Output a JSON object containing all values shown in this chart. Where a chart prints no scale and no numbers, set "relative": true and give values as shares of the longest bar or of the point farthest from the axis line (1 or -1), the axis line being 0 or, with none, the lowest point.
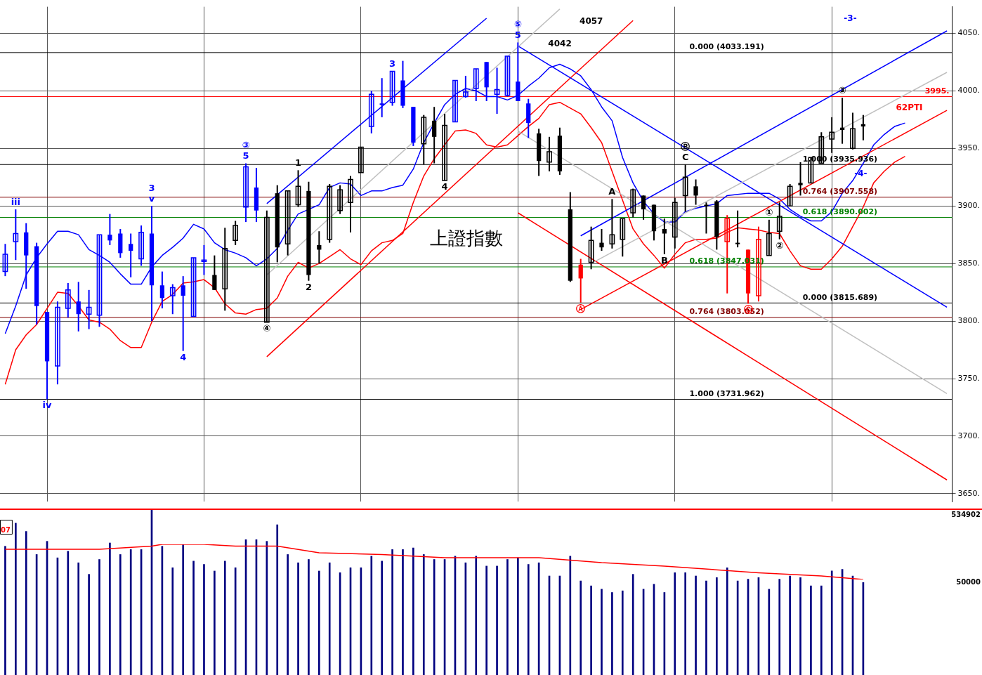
{
  "chart_data": [
    {
      "type": "candlestick",
      "title": "上證指數",
      "categories": [
        null,
        null,
        null,
        null,
        null,
        null,
        null,
        null,
        null,
        null,
        null,
        null,
        null,
        null,
        null,
        null,
        null,
        null,
        null,
        null,
        null,
        null,
        null,
        null,
        null,
        null,
        null,
        null,
        null,
        null,
        null,
        null,
        null,
        null,
        null,
        null,
        null,
        null,
        null,
        null,
        null,
        null,
        null,
        null,
        null,
        null,
        null,
        null,
        null,
        null,
        null,
        null,
        null,
        null,
        null,
        null,
        null,
        null,
        null,
        null,
        null,
        null,
        null,
        null,
        null,
        null,
        null,
        null,
        null,
        null,
        null,
        null,
        null,
        null,
        null,
        null,
        null,
        null,
        null,
        null,
        null,
        null,
        null,
        null,
        null,
        null,
        null,
        null,
        null,
        null,
        null
      ],
      "ohlc": [
        [
          3843,
          3867,
          3839,
          3858
        ],
        [
          3869,
          3897,
          3853,
          3876
        ],
        [
          3877,
          3885,
          3828,
          3857
        ],
        [
          3865,
          3868,
          3797,
          3813
        ],
        [
          3808,
          3808,
          3732,
          3765
        ],
        [
          3761,
          3817,
          3745,
          3812
        ],
        [
          3811,
          3833,
          3803,
          3827
        ],
        [
          3817,
          3834,
          3791,
          3806
        ],
        [
          3806,
          3827,
          3793,
          3812
        ],
        [
          3805,
          3875,
          3795,
          3875
        ],
        [
          3875,
          3893,
          3866,
          3870
        ],
        [
          3876,
          3880,
          3855,
          3859
        ],
        [
          3867,
          3876,
          3838,
          3861
        ],
        [
          3854,
          3883,
          3848,
          3877
        ],
        [
          3876,
          3900,
          3800,
          3831
        ],
        [
          3831,
          3843,
          3811,
          3820
        ],
        [
          3822,
          3832,
          3806,
          3829
        ],
        [
          3831,
          3839,
          3774,
          3822
        ],
        [
          3804,
          3855,
          3804,
          3855
        ],
        [
          3852,
          3866,
          3840,
          3853
        ],
        [
          3840,
          3857,
          3827,
          3827
        ],
        [
          3828,
          3881,
          3809,
          3863
        ],
        [
          3870,
          3887,
          3866,
          3883
        ],
        [
          3899,
          3937,
          3886,
          3934
        ],
        [
          3916,
          3933,
          3886,
          3896
        ],
        [
          3799,
          3896,
          3799,
          3890
        ],
        [
          3911,
          3918,
          3851,
          3864
        ],
        [
          3867,
          3913,
          3857,
          3913
        ],
        [
          3901,
          3931,
          3899,
          3917
        ],
        [
          3913,
          3921,
          3835,
          3840
        ],
        [
          3866,
          3878,
          3850,
          3862
        ],
        [
          3871,
          3919,
          3868,
          3917
        ],
        [
          3896,
          3918,
          3893,
          3914
        ],
        [
          3903,
          3926,
          3877,
          3923
        ],
        [
          3929,
          3951,
          3929,
          3951
        ],
        [
          3969,
          4000,
          3963,
          3997
        ],
        [
          3989,
          4011,
          3977,
          3988
        ],
        [
          3990,
          4017,
          3987,
          4017
        ],
        [
          4009,
          4026,
          3985,
          3987
        ],
        [
          3986,
          3986,
          3952,
          3955
        ],
        [
          3954,
          3979,
          3936,
          3977
        ],
        [
          3974,
          3986,
          3937,
          3960
        ],
        [
          3922,
          3980,
          3922,
          3970
        ],
        [
          3973,
          4009,
          3973,
          4009
        ],
        [
          3995,
          4013,
          3994,
          3999
        ],
        [
          4002,
          4019,
          3991,
          4019
        ],
        [
          4025,
          4025,
          3991,
          4003
        ],
        [
          3997,
          4020,
          3980,
          4001
        ],
        [
          3996,
          4030,
          3995,
          4030
        ],
        [
          4008,
          4042,
          3991,
          3991
        ],
        [
          3989,
          3993,
          3959,
          3972
        ],
        [
          3963,
          3967,
          3926,
          3939
        ],
        [
          3938,
          3960,
          3930,
          3947
        ],
        [
          3961,
          3968,
          3927,
          3930
        ],
        [
          3897,
          3912,
          3834,
          3835
        ],
        [
          3849,
          3854,
          3816,
          3837
        ],
        [
          3851,
          3882,
          3845,
          3870
        ],
        [
          3868,
          3880,
          3861,
          3864
        ],
        [
          3867,
          3906,
          3863,
          3875
        ],
        [
          3871,
          3889,
          3856,
          3889
        ],
        [
          3894,
          3915,
          3890,
          3914
        ],
        [
          3909,
          3909,
          3888,
          3897
        ],
        [
          3901,
          3901,
          3870,
          3878
        ],
        [
          3880,
          3889,
          3858,
          3876
        ],
        [
          3873,
          3907,
          3863,
          3903
        ],
        [
          3909,
          3936,
          3895,
          3925
        ],
        [
          3917,
          3923,
          3901,
          3909
        ],
        [
          3901,
          3903,
          3876,
          3900
        ],
        [
          3904,
          3905,
          3862,
          3873
        ],
        [
          3869,
          3892,
          3824,
          3889
        ],
        [
          3868,
          3896,
          3864,
          3867
        ],
        [
          3862,
          3862,
          3815,
          3824
        ],
        [
          3822,
          3882,
          3817,
          3871
        ],
        [
          3857,
          3888,
          3857,
          3876
        ],
        [
          3878,
          3903,
          3871,
          3891
        ],
        [
          3900,
          3919,
          3900,
          3917
        ],
        [
          3920,
          3938,
          3909,
          3918
        ],
        [
          3920,
          3942,
          3920,
          3942
        ],
        [
          3937,
          3964,
          3937,
          3960
        ],
        [
          3958,
          3977,
          3946,
          3964
        ],
        [
          3968,
          3994,
          3954,
          3966
        ],
        [
          3950,
          3981,
          3949,
          3967
        ],
        [
          3971,
          3979,
          3957,
          3969
        ],
        null,
        null,
        null,
        null,
        null,
        null,
        null,
        null
      ],
      "colors": [
        "#0000ff",
        "#0000ff",
        "#0000ff",
        "#0000ff",
        "#0000ff",
        "#0000ff",
        "#0000ff",
        "#0000ff",
        "#0000ff",
        "#0000ff",
        "#0000ff",
        "#0000ff",
        "#0000ff",
        "#0000ff",
        "#0000ff",
        "#0000ff",
        "#0000ff",
        "#0000ff",
        "#0000ff",
        "#0000ff",
        "#000000",
        "#000000",
        "#000000",
        "#0000ff",
        "#0000ff",
        "#000000",
        "#000000",
        "#000000",
        "#000000",
        "#000000",
        "#000000",
        "#000000",
        "#000000",
        "#000000",
        "#000000",
        "#0000ff",
        "#0000ff",
        "#0000ff",
        "#0000ff",
        "#0000ff",
        "#000000",
        "#000000",
        "#000000",
        "#0000ff",
        "#0000ff",
        "#0000ff",
        "#0000ff",
        "#0000ff",
        "#0000ff",
        "#0000ff",
        "#0000ff",
        "#000000",
        "#000000",
        "#000000",
        "#000000",
        "#ff0000",
        "#000000",
        "#000000",
        "#000000",
        "#000000",
        "#000000",
        "#000000",
        "#000000",
        "#000000",
        "#000000",
        "#000000",
        "#000000",
        "#000000",
        "#000000",
        "#ff0000",
        "#000000",
        "#ff0000",
        "#ff0000",
        "#000000",
        "#000000",
        "#000000",
        "#000000",
        "#000000",
        "#000000",
        "#000000",
        "#000000",
        "#000000",
        "#000000",
        null,
        null,
        null,
        null,
        null,
        null,
        null,
        null
      ],
      "series": [
        {
          "type": "line",
          "color": "#c0c0c0",
          "values": [
            null,
            null,
            null,
            null,
            null,
            null,
            null,
            null,
            null,
            null,
            null,
            null,
            null,
            null,
            null,
            null,
            null,
            null,
            null,
            null,
            null,
            null,
            null,
            null,
            null,
            3840,
            null,
            null,
            null,
            null,
            null,
            null,
            null,
            null,
            null,
            null,
            null,
            null,
            null,
            null,
            null,
            null,
            null,
            null,
            null,
            null,
            null,
            null,
            null,
            null,
            null,
            null,
            null,
            4071,
            null,
            null,
            null,
            null,
            null,
            null,
            null,
            null,
            null,
            null,
            null,
            null,
            null,
            null,
            null,
            null,
            null,
            null,
            null,
            null,
            null,
            null,
            null,
            null,
            null,
            null,
            null,
            null,
            null,
            null,
            null,
            null,
            null,
            null,
            null,
            null,
            null
          ]
        },
        {
          "type": "line",
          "color": "#c0c0c0",
          "values": [
            null,
            null,
            null,
            null,
            null,
            null,
            null,
            null,
            null,
            null,
            null,
            null,
            null,
            null,
            null,
            null,
            null,
            null,
            null,
            null,
            null,
            null,
            null,
            null,
            null,
            null,
            null,
            null,
            null,
            null,
            null,
            null,
            null,
            null,
            null,
            null,
            null,
            null,
            null,
            null,
            null,
            null,
            null,
            null,
            null,
            null,
            null,
            null,
            null,
            null,
            null,
            null,
            null,
            null,
            null,
            null,
            3850,
            null,
            null,
            null,
            null,
            null,
            null,
            null,
            null,
            null,
            null,
            null,
            null,
            null,
            null,
            null,
            null,
            null,
            null,
            null,
            null,
            null,
            null,
            null,
            null,
            null,
            null,
            null,
            null,
            null,
            null,
            null,
            null,
            null,
            4016
          ]
        },
        {
          "type": "line",
          "color": "#c0c0c0",
          "values": [
            null,
            null,
            null,
            null,
            null,
            null,
            null,
            null,
            null,
            null,
            null,
            null,
            null,
            null,
            null,
            null,
            null,
            null,
            null,
            null,
            null,
            null,
            null,
            null,
            null,
            null,
            null,
            null,
            null,
            null,
            null,
            null,
            null,
            null,
            null,
            null,
            null,
            null,
            null,
            null,
            null,
            null,
            null,
            null,
            null,
            null,
            null,
            null,
            null,
            3965,
            null,
            null,
            null,
            null,
            null,
            null,
            null,
            null,
            null,
            null,
            null,
            null,
            null,
            null,
            null,
            null,
            null,
            null,
            null,
            null,
            null,
            null,
            null,
            null,
            null,
            null,
            null,
            null,
            null,
            null,
            null,
            null,
            null,
            null,
            null,
            null,
            null,
            null,
            null,
            null,
            3737
          ]
        },
        {
          "type": "line",
          "color": "#0000ff",
          "values": [
            null,
            null,
            null,
            null,
            null,
            null,
            null,
            null,
            null,
            null,
            null,
            null,
            null,
            null,
            null,
            null,
            null,
            null,
            null,
            null,
            null,
            null,
            null,
            null,
            null,
            3902,
            null,
            null,
            null,
            null,
            null,
            null,
            null,
            null,
            null,
            null,
            null,
            null,
            null,
            null,
            null,
            null,
            null,
            null,
            null,
            null,
            4063,
            null,
            null,
            null,
            null,
            null,
            null,
            null,
            null,
            null,
            null,
            null,
            null,
            null,
            null,
            null,
            null,
            null,
            null,
            null,
            null,
            null,
            null,
            null,
            null,
            null,
            null,
            null,
            null,
            null,
            null,
            null,
            null,
            null,
            null,
            null,
            null,
            null,
            null,
            null,
            null,
            null,
            null,
            null,
            null
          ]
        },
        {
          "type": "line",
          "color": "#0000ff",
          "values": [
            null,
            null,
            null,
            null,
            null,
            null,
            null,
            null,
            null,
            null,
            null,
            null,
            null,
            null,
            null,
            null,
            null,
            null,
            null,
            null,
            null,
            null,
            null,
            null,
            null,
            null,
            null,
            null,
            null,
            null,
            null,
            null,
            null,
            null,
            null,
            null,
            null,
            null,
            null,
            null,
            null,
            null,
            null,
            null,
            null,
            null,
            null,
            null,
            null,
            null,
            null,
            null,
            null,
            null,
            null,
            3874,
            null,
            null,
            null,
            null,
            null,
            null,
            null,
            null,
            null,
            null,
            null,
            null,
            null,
            null,
            null,
            null,
            null,
            null,
            null,
            null,
            null,
            null,
            null,
            null,
            null,
            null,
            null,
            null,
            null,
            null,
            null,
            null,
            null,
            null,
            4052
          ]
        },
        {
          "type": "line",
          "color": "#0000ff",
          "values": [
            null,
            null,
            null,
            null,
            null,
            null,
            null,
            null,
            null,
            null,
            null,
            null,
            null,
            null,
            null,
            null,
            null,
            null,
            null,
            null,
            null,
            null,
            null,
            null,
            null,
            null,
            null,
            null,
            null,
            null,
            null,
            null,
            null,
            null,
            null,
            null,
            null,
            null,
            null,
            null,
            null,
            null,
            null,
            null,
            null,
            null,
            null,
            null,
            null,
            4039,
            null,
            null,
            null,
            null,
            null,
            null,
            null,
            null,
            null,
            null,
            null,
            null,
            null,
            null,
            null,
            null,
            null,
            null,
            null,
            null,
            null,
            null,
            null,
            null,
            null,
            null,
            null,
            null,
            null,
            null,
            null,
            null,
            null,
            null,
            null,
            null,
            null,
            null,
            null,
            null,
            3812
          ]
        },
        {
          "type": "line",
          "color": "#ff0000",
          "values": [
            null,
            null,
            null,
            null,
            null,
            null,
            null,
            null,
            null,
            null,
            null,
            null,
            null,
            null,
            null,
            null,
            null,
            null,
            null,
            null,
            null,
            null,
            null,
            null,
            null,
            3769,
            null,
            null,
            null,
            null,
            null,
            null,
            null,
            null,
            null,
            null,
            null,
            null,
            null,
            null,
            null,
            null,
            null,
            null,
            null,
            null,
            null,
            null,
            null,
            null,
            null,
            null,
            null,
            null,
            null,
            null,
            null,
            null,
            null,
            null,
            4061,
            null,
            null,
            null,
            null,
            null,
            null,
            null,
            null,
            null,
            null,
            null,
            null,
            null,
            null,
            null,
            null,
            null,
            null,
            null,
            null,
            null,
            null,
            null,
            null,
            null,
            null,
            null,
            null,
            null,
            null
          ]
        },
        {
          "type": "line",
          "color": "#ff0000",
          "values": [
            null,
            null,
            null,
            null,
            null,
            null,
            null,
            null,
            null,
            null,
            null,
            null,
            null,
            null,
            null,
            null,
            null,
            null,
            null,
            null,
            null,
            null,
            null,
            null,
            null,
            null,
            null,
            null,
            null,
            null,
            null,
            null,
            null,
            null,
            null,
            null,
            null,
            null,
            null,
            null,
            null,
            null,
            null,
            null,
            null,
            null,
            null,
            null,
            null,
            null,
            null,
            null,
            null,
            null,
            null,
            3810,
            null,
            null,
            null,
            null,
            null,
            null,
            null,
            null,
            null,
            null,
            null,
            null,
            null,
            null,
            null,
            null,
            null,
            null,
            null,
            null,
            null,
            null,
            null,
            null,
            null,
            null,
            null,
            null,
            null,
            null,
            null,
            null,
            null,
            null,
            3983
          ]
        },
        {
          "type": "line",
          "color": "#ff0000",
          "values": [
            null,
            null,
            null,
            null,
            null,
            null,
            null,
            null,
            null,
            null,
            null,
            null,
            null,
            null,
            null,
            null,
            null,
            null,
            null,
            null,
            null,
            null,
            null,
            null,
            null,
            null,
            null,
            null,
            null,
            null,
            null,
            null,
            null,
            null,
            null,
            null,
            null,
            null,
            null,
            null,
            null,
            null,
            null,
            null,
            null,
            null,
            null,
            null,
            null,
            3894,
            null,
            null,
            null,
            null,
            null,
            null,
            null,
            null,
            null,
            null,
            null,
            null,
            null,
            null,
            null,
            null,
            null,
            null,
            null,
            null,
            null,
            null,
            null,
            null,
            null,
            null,
            null,
            null,
            null,
            null,
            null,
            null,
            null,
            null,
            null,
            null,
            null,
            null,
            null,
            null,
            3662
          ]
        },
        {
          "type": "line",
          "color": "#0000ff",
          "values": [
            3789,
            3813,
            3840,
            3855,
            3867,
            3878,
            3878,
            3875,
            3862,
            3857,
            3851,
            3841,
            3832,
            3832,
            3847,
            3857,
            3864,
            3872,
            3884,
            3880,
            3868,
            3862,
            3859,
            3855,
            3848,
            3854,
            3863,
            3879,
            3893,
            3897,
            3901,
            3916,
            3920,
            3919,
            3909,
            3913,
            3913,
            3916,
            3918,
            3932,
            3955,
            3972,
            3988,
            3997,
            4002,
            4000,
            3995,
            3995,
            3992,
            3996,
            4004,
            4011,
            4020,
            4023,
            4019,
            4013,
            4001,
            3986,
            3974,
            3942,
            3920,
            3904,
            3893,
            3886,
            3886,
            3895,
            3898,
            3900,
            3902,
            3909,
            3910,
            3911,
            3911,
            3911,
            3906,
            3897,
            3891,
            3887,
            3887,
            3895,
            3911,
            3922,
            3937,
            3953,
            3962,
            3969,
            3972,
            null,
            null,
            null,
            null
          ]
        },
        {
          "type": "line",
          "color": "#ff0000",
          "values": [
            3745,
            3775,
            3788,
            3797,
            3811,
            3825,
            3824,
            3813,
            3801,
            3799,
            3793,
            3783,
            3777,
            3777,
            3799,
            3817,
            3823,
            3833,
            3834,
            3836,
            3829,
            3815,
            3807,
            3806,
            3810,
            3811,
            3820,
            3839,
            3851,
            3846,
            3850,
            3856,
            3862,
            3854,
            3849,
            3861,
            3868,
            3870,
            3876,
            3903,
            3926,
            3941,
            3953,
            3965,
            3966,
            3963,
            3953,
            3951,
            3953,
            3961,
            3969,
            3976,
            3988,
            3990,
            3985,
            3980,
            3968,
            3955,
            3930,
            3905,
            3880,
            3867,
            3857,
            3846,
            3858,
            3868,
            3871,
            3871,
            3872,
            3877,
            3881,
            3880,
            3879,
            3877,
            3876,
            3861,
            3848,
            3845,
            3845,
            3854,
            3865,
            3882,
            3899,
            3920,
            3930,
            3938,
            3943,
            null,
            null,
            null,
            null
          ]
        }
      ],
      "ylim": [
        3643,
        4073
      ],
      "yticks": [
        {
          "value": 4050,
          "label": "4050."
        },
        {
          "value": 4000,
          "label": "4000."
        },
        {
          "value": 3950,
          "label": "3950."
        },
        {
          "value": 3900,
          "label": "3900."
        },
        {
          "value": 3850,
          "label": "3850."
        },
        {
          "value": 3800,
          "label": "3800."
        },
        {
          "value": 3750,
          "label": "3750."
        },
        {
          "value": 3700,
          "label": "3700."
        },
        {
          "value": 3650,
          "label": "3650."
        }
      ],
      "tick_labels": "y",
      "grid": true,
      "ref_lines": [
        {
          "axis": "y",
          "value": 4033.191,
          "label": "0.000 (4033.191)",
          "color": "#000000"
        },
        {
          "axis": "y",
          "value": 3847.031,
          "label": "0.618 (3847.031)",
          "color": "#008000"
        },
        {
          "axis": "y",
          "value": 3803.052,
          "label": "0.764 (3803.052)",
          "color": "#800000"
        },
        {
          "axis": "y",
          "value": 3731.962,
          "label": "1.000 (3731.962)",
          "color": "#000000"
        },
        {
          "axis": "y",
          "value": 3815.689,
          "label": "0.000 (3815.689)",
          "color": "#000000"
        },
        {
          "axis": "y",
          "value": 3890.002,
          "label": "0.618 (3890.002)",
          "color": "#008000"
        },
        {
          "axis": "y",
          "value": 3907.558,
          "label": "0.764 (3907.558)",
          "color": "#800000"
        },
        {
          "axis": "y",
          "value": 3935.936,
          "label": "1.000 (3935.936)",
          "color": "#000000"
        },
        {
          "axis": "y",
          "value": 3995,
          "label": "3995.",
          "color": "#ff0000"
        }
      ],
      "annotations": [
        {
          "text": "iii",
          "y": 3897
        },
        {
          "text": "iv",
          "y": 3732
        },
        {
          "text": "v",
          "y": 3900
        },
        {
          "text": "3",
          "y": 3900
        },
        {
          "text": "4",
          "y": 3774
        },
        {
          "text": "5",
          "y": 3937
        },
        {
          "text": "③",
          "y": 3937
        },
        {
          "text": "④",
          "y": 3799
        },
        {
          "text": "1",
          "y": 3931
        },
        {
          "text": "2",
          "y": 3835
        },
        {
          "text": "3",
          "y": 4017
        },
        {
          "text": "4",
          "y": 3922
        },
        {
          "text": "5",
          "y": 4042
        },
        {
          "text": "⑤",
          "y": 4042
        },
        {
          "text": "A",
          "y": 3906
        },
        {
          "text": "B",
          "y": 3858
        },
        {
          "text": "C",
          "y": 3936
        },
        {
          "text": "Ⓑ",
          "y": 3936
        },
        {
          "text": "Ⓐ",
          "y": 3816
        },
        {
          "text": "Ⓒ",
          "y": 3815
        },
        {
          "text": "①",
          "y": 3888
        },
        {
          "text": "②",
          "y": 3871
        },
        {
          "text": "③",
          "y": 3994
        },
        "4057",
        "-3-",
        "4042",
        "-4-",
        "62PTI"
      ]
    },
    {
      "type": "bar",
      "relative": true,
      "tick_labels": false,
      "categories": [
        null,
        null,
        null,
        null,
        null,
        null,
        null,
        null,
        null,
        null,
        null,
        null,
        null,
        null,
        null,
        null,
        null,
        null,
        null,
        null,
        null,
        null,
        null,
        null,
        null,
        null,
        null,
        null,
        null,
        null,
        null,
        null,
        null,
        null,
        null,
        null,
        null,
        null,
        null,
        null,
        null,
        null,
        null,
        null,
        null,
        null,
        null,
        null,
        null,
        null,
        null,
        null,
        null,
        null,
        null,
        null,
        null,
        null,
        null,
        null,
        null,
        null,
        null,
        null,
        null,
        null,
        null,
        null,
        null,
        null,
        null,
        null,
        null,
        null,
        null,
        null,
        null,
        null,
        null,
        null,
        null,
        null,
        null
      ],
      "series": [
        {
          "color": "#000080",
          "values": [
            0.78,
            0.92,
            0.87,
            0.73,
            0.81,
            0.71,
            0.75,
            0.68,
            0.61,
            0.7,
            0.8,
            0.73,
            0.76,
            0.76,
            1,
            0.78,
            0.65,
            0.79,
            0.69,
            0.67,
            0.63,
            0.69,
            0.65,
            0.82,
            0.82,
            0.81,
            0.91,
            0.73,
            0.68,
            0.7,
            0.63,
            0.68,
            0.62,
            0.65,
            0.65,
            0.72,
            0.69,
            0.76,
            0.76,
            0.77,
            0.73,
            0.7,
            0.7,
            0.72,
            0.68,
            0.72,
            0.66,
            0.66,
            0.7,
            0.71,
            0.67,
            0.68,
            0.6,
            0.6,
            0.72,
            0.57,
            0.54,
            0.52,
            0.5,
            0.51,
            0.61,
            0.52,
            0.55,
            0.5,
            0.62,
            0.62,
            0.6,
            0.57,
            0.59,
            0.65,
            0.57,
            0.58,
            0.59,
            0.52,
            0.58,
            0.6,
            0.59,
            0.54,
            0.54,
            0.63,
            0.64,
            0.6,
            0.56
          ]
        }
      ],
      "annotations": [
        "07",
        "534902",
        "50000"
      ]
    },
    {
      "type": "line",
      "relative": true,
      "tick_labels": false,
      "categories": [
        null,
        null,
        null,
        null,
        null,
        null,
        null,
        null,
        null,
        null,
        null,
        null,
        null,
        null,
        null,
        null,
        null,
        null,
        null,
        null,
        null,
        null,
        null,
        null,
        null,
        null,
        null,
        null,
        null,
        null,
        null,
        null,
        null,
        null,
        null,
        null,
        null,
        null,
        null,
        null,
        null,
        null,
        null,
        null,
        null,
        null,
        null,
        null,
        null,
        null,
        null,
        null,
        null,
        null,
        null,
        null,
        null,
        null,
        null,
        null,
        null,
        null,
        null,
        null,
        null,
        null,
        null,
        null,
        null,
        null,
        null,
        null,
        null,
        null,
        null,
        null,
        null,
        null,
        null,
        null,
        null,
        null,
        null
      ],
      "series": [
        {
          "color": "#ff0000",
          "values": [
            0.86,
            null,
            null,
            null,
            null,
            null,
            null,
            null,
            null,
            0.86,
            null,
            null,
            null,
            null,
            0.95,
            1,
            null,
            null,
            null,
            1,
            null,
            null,
            0.95,
            null,
            null,
            null,
            0.95,
            null,
            null,
            null,
            0.76,
            null,
            null,
            null,
            null,
            null,
            0.71,
            null,
            null,
            null,
            null,
            null,
            0.62,
            null,
            null,
            null,
            null,
            null,
            null,
            null,
            null,
            0.62,
            null,
            null,
            null,
            null,
            null,
            0.48,
            null,
            null,
            null,
            null,
            null,
            0.38,
            null,
            null,
            null,
            null,
            null,
            null,
            null,
            null,
            0.19,
            null,
            null,
            null,
            null,
            null,
            0.1,
            null,
            null,
            null,
            0
          ]
        }
      ]
    }
  ]
}
